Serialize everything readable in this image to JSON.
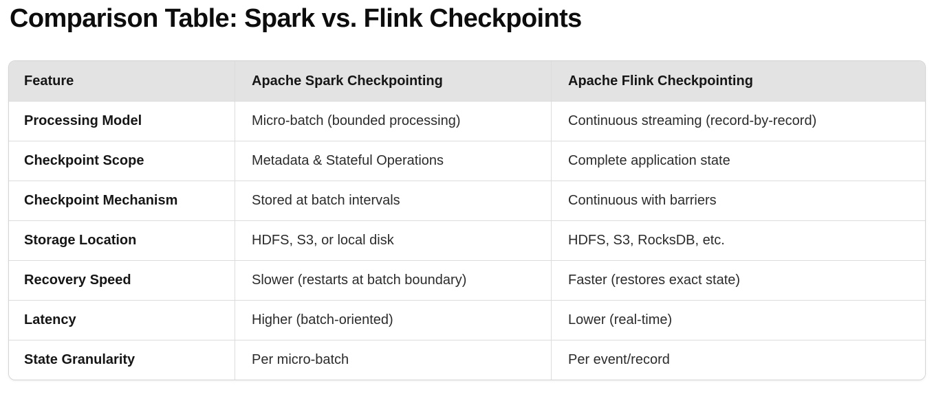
{
  "page": {
    "title": "Comparison Table: Spark vs. Flink Checkpoints"
  },
  "colors": {
    "header_bg": "#e3e3e3",
    "table_border": "#d4d4d4",
    "row_divider": "#dcdcdc",
    "title_text": "#0d0d0d",
    "body_text": "#2b2b2b"
  },
  "chart_data": {
    "type": "table",
    "title": "Comparison Table: Spark vs. Flink Checkpoints",
    "columns": [
      "Feature",
      "Apache Spark Checkpointing",
      "Apache Flink Checkpointing"
    ],
    "rows": [
      {
        "feature": "Processing Model",
        "spark": "Micro-batch (bounded processing)",
        "flink": "Continuous streaming (record-by-record)"
      },
      {
        "feature": "Checkpoint Scope",
        "spark": "Metadata & Stateful Operations",
        "flink": "Complete application state"
      },
      {
        "feature": "Checkpoint Mechanism",
        "spark": "Stored at batch intervals",
        "flink": "Continuous with barriers"
      },
      {
        "feature": "Storage Location",
        "spark": "HDFS, S3, or local disk",
        "flink": "HDFS, S3, RocksDB, etc."
      },
      {
        "feature": "Recovery Speed",
        "spark": "Slower (restarts at batch boundary)",
        "flink": "Faster (restores exact state)"
      },
      {
        "feature": "Latency",
        "spark": "Higher (batch-oriented)",
        "flink": "Lower (real-time)"
      },
      {
        "feature": "State Granularity",
        "spark": "Per micro-batch",
        "flink": "Per event/record"
      }
    ]
  }
}
